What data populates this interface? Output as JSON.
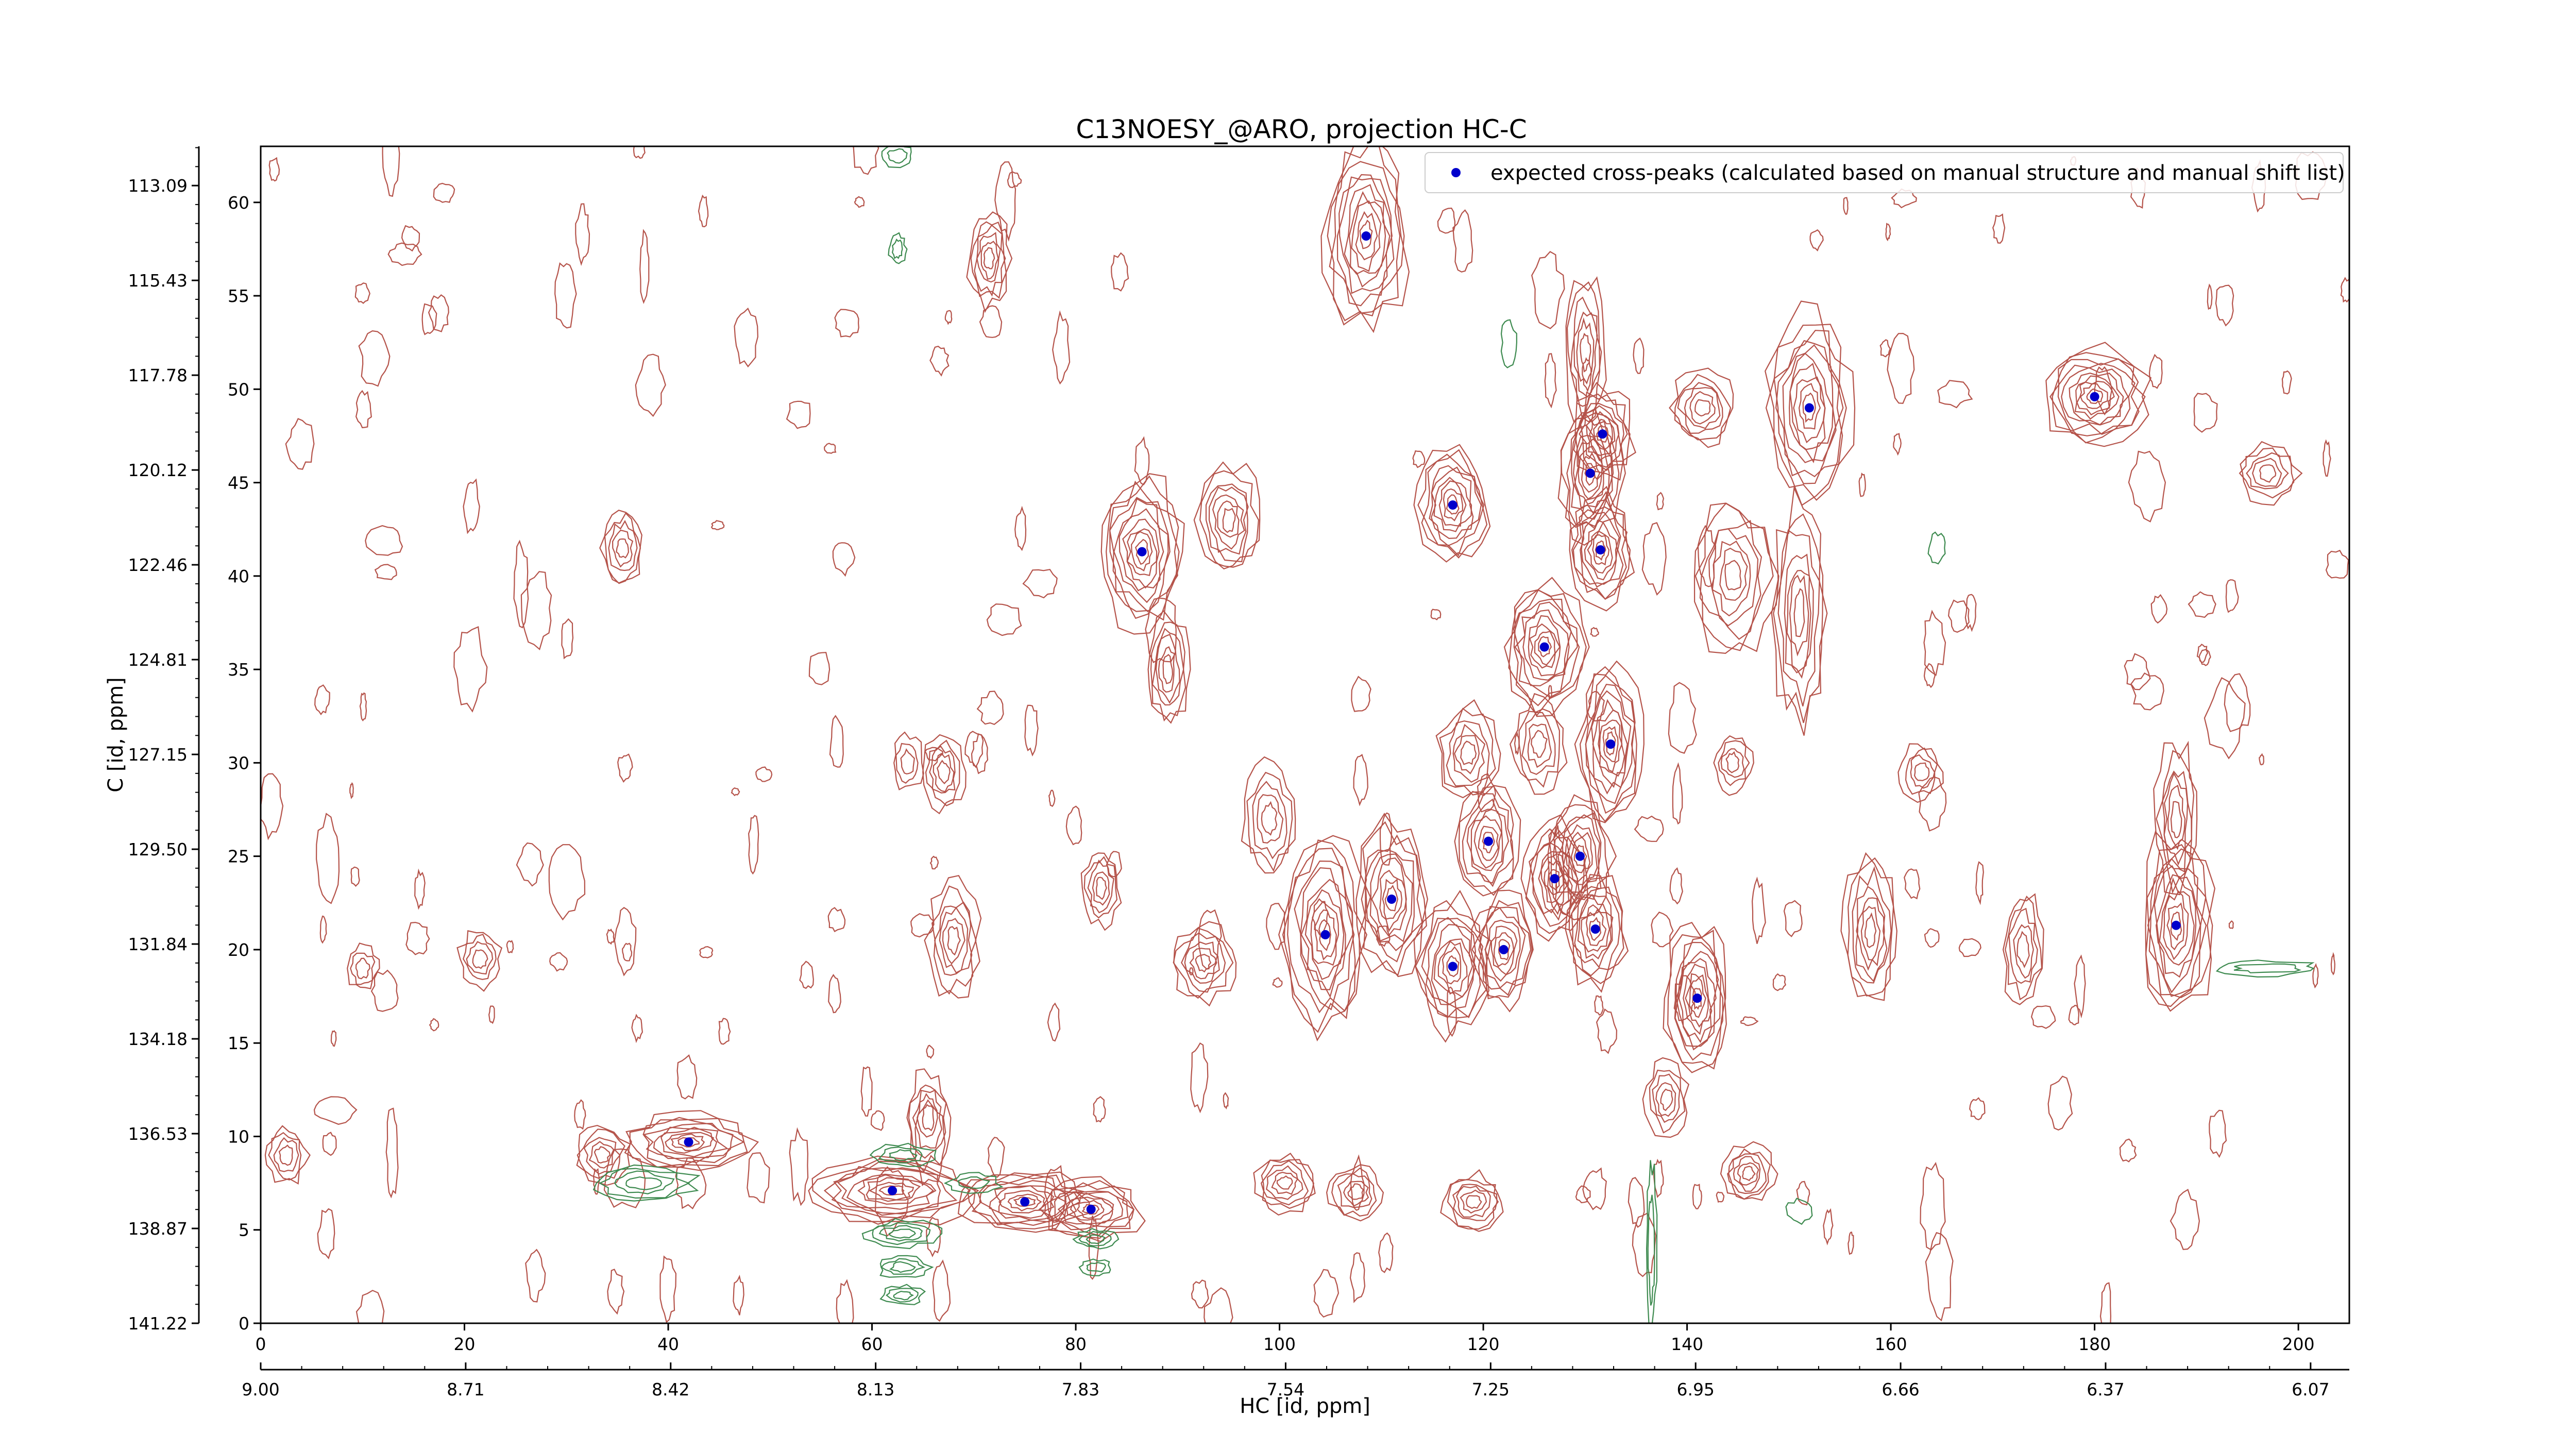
{
  "chart_data": {
    "type": "scatter",
    "title": "C13NOESY_@ARO, projection HC-C",
    "xlabel_bottom": "HC [id, ppm]",
    "ylabel": "C [id, ppm]",
    "x_index_range": [
      0,
      205
    ],
    "y_index_range": [
      0,
      63
    ],
    "x_index_ticks": [
      "0",
      "20",
      "40",
      "60",
      "80",
      "100",
      "120",
      "140",
      "160",
      "180",
      "200"
    ],
    "y_index_ticks": [
      "0",
      "5",
      "10",
      "15",
      "20",
      "25",
      "30",
      "35",
      "40",
      "45",
      "50",
      "55",
      "60"
    ],
    "x_ppm_ticks": [
      "9.00",
      "8.71",
      "8.42",
      "8.13",
      "7.83",
      "7.54",
      "7.25",
      "6.95",
      "6.66",
      "6.37",
      "6.07"
    ],
    "y_ppm_ticks": [
      "141.22",
      "138.87",
      "136.53",
      "134.18",
      "131.84",
      "129.50",
      "127.15",
      "124.81",
      "122.46",
      "120.12",
      "117.78",
      "115.43",
      "113.09"
    ],
    "legend": {
      "label": "expected cross-peaks (calculated based on manual structure and manual shift list)",
      "placement": "top-right"
    },
    "colors": {
      "positive_contour": "#b5534a",
      "negative_contour": "#3d8a4f",
      "peak_marker": "#0000cc"
    },
    "series": [
      {
        "name": "expected cross-peaks (calculated based on manual structure and manual shift list)",
        "points": [
          {
            "x": 108.5,
            "y": 58.2
          },
          {
            "x": 42.0,
            "y": 9.7
          },
          {
            "x": 62.0,
            "y": 7.1
          },
          {
            "x": 75.0,
            "y": 6.5
          },
          {
            "x": 81.5,
            "y": 6.1
          },
          {
            "x": 86.5,
            "y": 41.3
          },
          {
            "x": 104.5,
            "y": 20.8
          },
          {
            "x": 111.0,
            "y": 22.7
          },
          {
            "x": 117.0,
            "y": 43.8
          },
          {
            "x": 117.0,
            "y": 19.1
          },
          {
            "x": 120.5,
            "y": 25.8
          },
          {
            "x": 122.0,
            "y": 20.0
          },
          {
            "x": 126.0,
            "y": 36.2
          },
          {
            "x": 127.0,
            "y": 23.8
          },
          {
            "x": 129.5,
            "y": 25.0
          },
          {
            "x": 130.5,
            "y": 45.5
          },
          {
            "x": 131.0,
            "y": 21.1
          },
          {
            "x": 131.5,
            "y": 41.4
          },
          {
            "x": 131.7,
            "y": 47.6
          },
          {
            "x": 132.5,
            "y": 31.0
          },
          {
            "x": 141.0,
            "y": 17.4
          },
          {
            "x": 152.0,
            "y": 49.0
          },
          {
            "x": 180.0,
            "y": 49.6
          },
          {
            "x": 188.0,
            "y": 21.3
          }
        ]
      }
    ],
    "contour_centers": [
      {
        "x": 108.5,
        "y": 58.2,
        "rx": 4,
        "ry": 5,
        "levels": 10
      },
      {
        "x": 42.0,
        "y": 9.7,
        "rx": 6,
        "ry": 1.5,
        "levels": 9
      },
      {
        "x": 62.0,
        "y": 7.1,
        "rx": 8,
        "ry": 1.8,
        "levels": 10
      },
      {
        "x": 75.0,
        "y": 6.5,
        "rx": 6,
        "ry": 1.6,
        "levels": 9
      },
      {
        "x": 81.5,
        "y": 6.1,
        "rx": 5,
        "ry": 1.6,
        "levels": 9
      },
      {
        "x": 86.5,
        "y": 41.3,
        "rx": 4,
        "ry": 4,
        "levels": 10
      },
      {
        "x": 104.5,
        "y": 20.8,
        "rx": 4,
        "ry": 5,
        "levels": 10
      },
      {
        "x": 111.0,
        "y": 22.7,
        "rx": 3.5,
        "ry": 4,
        "levels": 9
      },
      {
        "x": 117.0,
        "y": 43.8,
        "rx": 3.5,
        "ry": 3,
        "levels": 9
      },
      {
        "x": 117.0,
        "y": 19.1,
        "rx": 3.5,
        "ry": 3.5,
        "levels": 9
      },
      {
        "x": 120.5,
        "y": 25.8,
        "rx": 3,
        "ry": 3,
        "levels": 8
      },
      {
        "x": 122.0,
        "y": 20.0,
        "rx": 3,
        "ry": 3,
        "levels": 8
      },
      {
        "x": 126.0,
        "y": 36.2,
        "rx": 4,
        "ry": 3.5,
        "levels": 10
      },
      {
        "x": 127.0,
        "y": 23.8,
        "rx": 3,
        "ry": 3,
        "levels": 8
      },
      {
        "x": 129.5,
        "y": 25.0,
        "rx": 3,
        "ry": 3,
        "levels": 8
      },
      {
        "x": 130.5,
        "y": 45.5,
        "rx": 3,
        "ry": 3.5,
        "levels": 9
      },
      {
        "x": 131.0,
        "y": 21.1,
        "rx": 3,
        "ry": 3,
        "levels": 8
      },
      {
        "x": 131.5,
        "y": 41.4,
        "rx": 3,
        "ry": 3,
        "levels": 9
      },
      {
        "x": 131.7,
        "y": 47.6,
        "rx": 3,
        "ry": 2.5,
        "levels": 8
      },
      {
        "x": 132.5,
        "y": 31.0,
        "rx": 3,
        "ry": 4,
        "levels": 10
      },
      {
        "x": 141.0,
        "y": 17.4,
        "rx": 3,
        "ry": 4,
        "levels": 10
      },
      {
        "x": 152.0,
        "y": 49.0,
        "rx": 4,
        "ry": 5,
        "levels": 10
      },
      {
        "x": 180.0,
        "y": 49.6,
        "rx": 5,
        "ry": 2.5,
        "levels": 10
      },
      {
        "x": 188.0,
        "y": 21.3,
        "rx": 3.5,
        "ry": 5,
        "levels": 10
      },
      {
        "x": 35.5,
        "y": 41.5,
        "rx": 2,
        "ry": 2,
        "levels": 5
      },
      {
        "x": 71.5,
        "y": 57.0,
        "rx": 2,
        "ry": 2.5,
        "levels": 6
      },
      {
        "x": 67.0,
        "y": 29.5,
        "rx": 2,
        "ry": 2,
        "levels": 5
      },
      {
        "x": 68.0,
        "y": 20.5,
        "rx": 2.5,
        "ry": 3,
        "levels": 6
      },
      {
        "x": 92.5,
        "y": 19.3,
        "rx": 3,
        "ry": 2,
        "levels": 6
      },
      {
        "x": 95.0,
        "y": 43.0,
        "rx": 3,
        "ry": 3,
        "levels": 7
      },
      {
        "x": 89.0,
        "y": 35.0,
        "rx": 2,
        "ry": 3,
        "levels": 6
      },
      {
        "x": 82.5,
        "y": 23.3,
        "rx": 1.8,
        "ry": 2,
        "levels": 5
      },
      {
        "x": 158.0,
        "y": 21.0,
        "rx": 2.5,
        "ry": 4,
        "levels": 7
      },
      {
        "x": 144.5,
        "y": 40.0,
        "rx": 4,
        "ry": 4,
        "levels": 7
      },
      {
        "x": 151.0,
        "y": 38.0,
        "rx": 2.5,
        "ry": 6,
        "levels": 7
      },
      {
        "x": 141.5,
        "y": 49.0,
        "rx": 3,
        "ry": 2,
        "levels": 6
      },
      {
        "x": 146.0,
        "y": 8.0,
        "rx": 2.5,
        "ry": 1.5,
        "levels": 6
      },
      {
        "x": 173.0,
        "y": 20.0,
        "rx": 2,
        "ry": 3,
        "levels": 5
      },
      {
        "x": 188.0,
        "y": 27.0,
        "rx": 2,
        "ry": 4,
        "levels": 6
      },
      {
        "x": 163.0,
        "y": 29.5,
        "rx": 2,
        "ry": 1.5,
        "levels": 4
      },
      {
        "x": 144.5,
        "y": 30.0,
        "rx": 1.8,
        "ry": 1.5,
        "levels": 4
      },
      {
        "x": 118.5,
        "y": 30.5,
        "rx": 3,
        "ry": 2.5,
        "levels": 6
      },
      {
        "x": 125.5,
        "y": 31.0,
        "rx": 2.5,
        "ry": 2.5,
        "levels": 5
      },
      {
        "x": 100.5,
        "y": 7.5,
        "rx": 3,
        "ry": 1.5,
        "levels": 6
      },
      {
        "x": 107.5,
        "y": 7.0,
        "rx": 2.5,
        "ry": 1.5,
        "levels": 5
      },
      {
        "x": 119.0,
        "y": 6.5,
        "rx": 3,
        "ry": 1.5,
        "levels": 6
      },
      {
        "x": 33.5,
        "y": 9.0,
        "rx": 2.5,
        "ry": 1.5,
        "levels": 5
      },
      {
        "x": 2.5,
        "y": 9.0,
        "rx": 2,
        "ry": 1.5,
        "levels": 4
      },
      {
        "x": 21.5,
        "y": 19.5,
        "rx": 2,
        "ry": 1.5,
        "levels": 4
      },
      {
        "x": 10.0,
        "y": 19.0,
        "rx": 1.5,
        "ry": 1.2,
        "levels": 3
      },
      {
        "x": 99.0,
        "y": 27.0,
        "rx": 2.5,
        "ry": 3,
        "levels": 5
      },
      {
        "x": 197.0,
        "y": 45.5,
        "rx": 3,
        "ry": 1.5,
        "levels": 5
      },
      {
        "x": 138.0,
        "y": 12.0,
        "rx": 2,
        "ry": 2,
        "levels": 5
      },
      {
        "x": 130.0,
        "y": 52.0,
        "rx": 2,
        "ry": 4,
        "levels": 6
      },
      {
        "x": 65.5,
        "y": 11.0,
        "rx": 2,
        "ry": 2.5,
        "levels": 5
      },
      {
        "x": 63.5,
        "y": 30.0,
        "rx": 1.5,
        "ry": 1.5,
        "levels": 3
      }
    ],
    "negative_centers": [
      {
        "x": 37.5,
        "y": 7.5,
        "rx": 5,
        "ry": 1.0,
        "levels": 4
      },
      {
        "x": 63.0,
        "y": 4.8,
        "rx": 3.5,
        "ry": 0.7,
        "levels": 4
      },
      {
        "x": 63.0,
        "y": 3.0,
        "rx": 2.5,
        "ry": 0.6,
        "levels": 3
      },
      {
        "x": 63.0,
        "y": 1.5,
        "rx": 2,
        "ry": 0.5,
        "levels": 3
      },
      {
        "x": 63.0,
        "y": 9.0,
        "rx": 3,
        "ry": 0.6,
        "levels": 3
      },
      {
        "x": 82.0,
        "y": 4.5,
        "rx": 2,
        "ry": 0.5,
        "levels": 3
      },
      {
        "x": 82.0,
        "y": 3.0,
        "rx": 1.5,
        "ry": 0.4,
        "levels": 2
      },
      {
        "x": 70.0,
        "y": 7.5,
        "rx": 2.5,
        "ry": 0.5,
        "levels": 2
      },
      {
        "x": 136.5,
        "y": 4.0,
        "rx": 0.5,
        "ry": 4.5,
        "levels": 2
      },
      {
        "x": 62.5,
        "y": 57.5,
        "rx": 0.8,
        "ry": 0.8,
        "levels": 2
      },
      {
        "x": 62.5,
        "y": 62.5,
        "rx": 1.5,
        "ry": 0.6,
        "levels": 2
      },
      {
        "x": 122.5,
        "y": 52.5,
        "rx": 0.7,
        "ry": 1.2,
        "levels": 1
      },
      {
        "x": 197.0,
        "y": 19.0,
        "rx": 5,
        "ry": 0.4,
        "levels": 2
      },
      {
        "x": 164.5,
        "y": 41.5,
        "rx": 0.8,
        "ry": 0.8,
        "levels": 1
      },
      {
        "x": 151.0,
        "y": 6.0,
        "rx": 1.2,
        "ry": 0.6,
        "levels": 1
      }
    ]
  }
}
